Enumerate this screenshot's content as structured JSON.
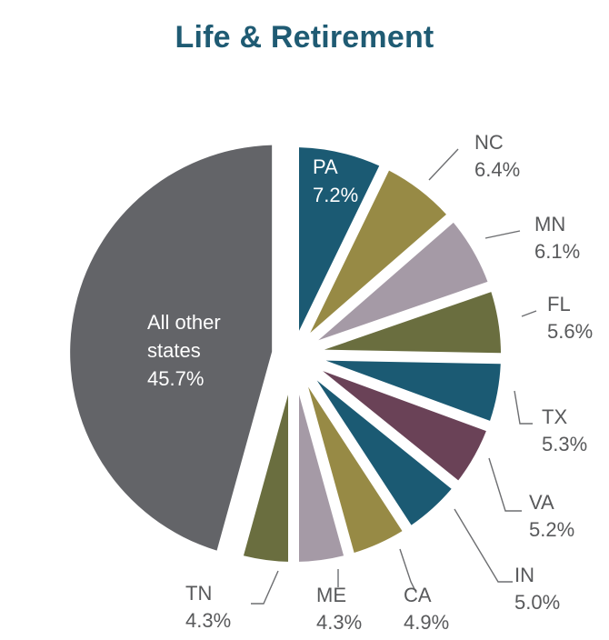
{
  "chart_data": {
    "type": "pie",
    "title": "Life & Retirement",
    "slices": [
      {
        "label": "PA",
        "value": 7.2,
        "display": "7.2%",
        "color": "#1b5a73"
      },
      {
        "label": "NC",
        "value": 6.4,
        "display": "6.4%",
        "color": "#978a45"
      },
      {
        "label": "MN",
        "value": 6.1,
        "display": "6.1%",
        "color": "#a59aa6"
      },
      {
        "label": "FL",
        "value": 5.6,
        "display": "5.6%",
        "color": "#6a6e3f"
      },
      {
        "label": "TX",
        "value": 5.3,
        "display": "5.3%",
        "color": "#1b5a73"
      },
      {
        "label": "VA",
        "value": 5.2,
        "display": "5.2%",
        "color": "#6a4257"
      },
      {
        "label": "IN",
        "value": 5.0,
        "display": "5.0%",
        "color": "#1b5a73"
      },
      {
        "label": "CA",
        "value": 4.9,
        "display": "4.9%",
        "color": "#978a45"
      },
      {
        "label": "ME",
        "value": 4.3,
        "display": "4.3%",
        "color": "#a59aa6"
      },
      {
        "label": "TN",
        "value": 4.3,
        "display": "4.3%",
        "color": "#6a6e3f"
      },
      {
        "label": "All other states",
        "label_lines": [
          "All other",
          "states"
        ],
        "value": 45.7,
        "display": "45.7%",
        "color": "#636468"
      }
    ],
    "exploded_slice": "All other states",
    "label_color": "#58595b",
    "title_color": "#1f5b73"
  }
}
